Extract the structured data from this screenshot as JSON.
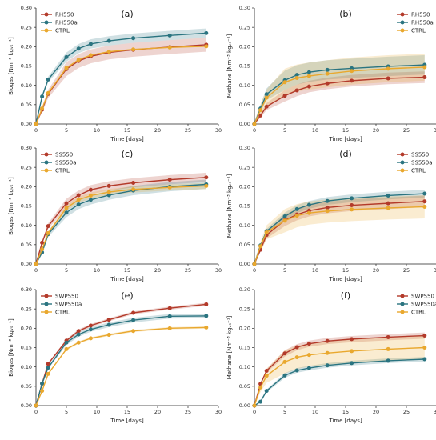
{
  "colors": {
    "RH550": "#b33a2a",
    "SS550": "#b33a2a",
    "SWP550": "#b33a2a",
    "RH550a": "#2a7480",
    "SS550a": "#2a7480",
    "SWP550a": "#2a7480",
    "CTRL": "#e9a82e"
  },
  "chart_data": [
    {
      "type": "line",
      "tag": "(a)",
      "xlabel": "Time [days]",
      "ylabel": "Biogas [Nm⁻³ kgᵥₛ⁻¹]",
      "xlim": [
        0,
        30
      ],
      "ylim": [
        0,
        0.3
      ],
      "xticks": [
        "0",
        "5",
        "10",
        "15",
        "20",
        "25",
        "30"
      ],
      "yticks": [
        "0.00",
        "0.05",
        "0.10",
        "0.15",
        "0.20",
        "0.25",
        "0.30"
      ],
      "legend": "top-left",
      "x": [
        0,
        1,
        2,
        5,
        7,
        9,
        12,
        16,
        22,
        28
      ],
      "series": [
        {
          "name": "RH550",
          "color": "#b33a2a",
          "band": 0.018,
          "values": [
            0,
            0.037,
            0.078,
            0.142,
            0.163,
            0.175,
            0.185,
            0.192,
            0.199,
            0.205
          ]
        },
        {
          "name": "RH550a",
          "color": "#2a7480",
          "band": 0.012,
          "values": [
            0,
            0.071,
            0.115,
            0.173,
            0.195,
            0.207,
            0.215,
            0.222,
            0.229,
            0.235
          ]
        },
        {
          "name": "CTRL",
          "color": "#e9a82e",
          "band": 0.0,
          "values": [
            0,
            0.04,
            0.08,
            0.145,
            0.166,
            0.178,
            0.187,
            0.193,
            0.198,
            0.201
          ]
        }
      ]
    },
    {
      "type": "line",
      "tag": "(b)",
      "xlabel": "Time [days]",
      "ylabel": "Methane [Nm⁻³ kgᵥₛ⁻¹]",
      "xlim": [
        0,
        30
      ],
      "ylim": [
        0,
        0.3
      ],
      "xticks": [
        "0",
        "5",
        "10",
        "15",
        "20",
        "25",
        "30"
      ],
      "yticks": [
        "0.00",
        "0.05",
        "0.10",
        "0.15",
        "0.20",
        "0.25",
        "0.30"
      ],
      "legend": "top-right",
      "x": [
        0,
        1,
        2,
        5,
        7,
        9,
        12,
        16,
        22,
        28
      ],
      "series": [
        {
          "name": "RH550",
          "color": "#b33a2a",
          "band": 0.015,
          "values": [
            0,
            0.022,
            0.045,
            0.073,
            0.087,
            0.097,
            0.105,
            0.112,
            0.118,
            0.121
          ]
        },
        {
          "name": "RH550a",
          "color": "#2a7480",
          "band": 0.025,
          "values": [
            0,
            0.04,
            0.077,
            0.113,
            0.127,
            0.134,
            0.14,
            0.144,
            0.149,
            0.153
          ]
        },
        {
          "name": "CTRL",
          "color": "#e9a82e",
          "band": 0.035,
          "values": [
            0,
            0.036,
            0.068,
            0.108,
            0.119,
            0.124,
            0.13,
            0.137,
            0.143,
            0.147
          ]
        }
      ]
    },
    {
      "type": "line",
      "tag": "(c)",
      "xlabel": "Time [days]",
      "ylabel": "Biogas [Nm⁻³ kgᵥₛ⁻¹]",
      "xlim": [
        0,
        30
      ],
      "ylim": [
        0,
        0.3
      ],
      "xticks": [
        "0",
        "5",
        "10",
        "15",
        "20",
        "25",
        "30"
      ],
      "yticks": [
        "0.00",
        "0.05",
        "0.10",
        "0.15",
        "0.20",
        "0.25",
        "0.30"
      ],
      "legend": "top-left",
      "x": [
        0,
        1,
        2,
        5,
        7,
        9,
        12,
        16,
        22,
        28
      ],
      "series": [
        {
          "name": "SS550",
          "color": "#b33a2a",
          "band": 0.012,
          "values": [
            0,
            0.055,
            0.098,
            0.157,
            0.178,
            0.192,
            0.202,
            0.21,
            0.218,
            0.224
          ]
        },
        {
          "name": "SS550a",
          "color": "#2a7480",
          "band": 0.012,
          "values": [
            0,
            0.03,
            0.077,
            0.133,
            0.154,
            0.166,
            0.178,
            0.19,
            0.2,
            0.206
          ]
        },
        {
          "name": "CTRL",
          "color": "#e9a82e",
          "band": 0.008,
          "values": [
            0,
            0.038,
            0.08,
            0.145,
            0.166,
            0.177,
            0.186,
            0.193,
            0.198,
            0.202
          ]
        }
      ]
    },
    {
      "type": "line",
      "tag": "(d)",
      "xlabel": "Time [days]",
      "ylabel": "Methane [Nm⁻³ kgᵥₛ⁻¹]",
      "xlim": [
        0,
        30
      ],
      "ylim": [
        0,
        0.3
      ],
      "xticks": [
        "0",
        "5",
        "10",
        "15",
        "20",
        "25",
        "30"
      ],
      "yticks": [
        "0.00",
        "0.05",
        "0.10",
        "0.15",
        "0.20",
        "0.25",
        "0.30"
      ],
      "legend": "top-right",
      "x": [
        0,
        1,
        2,
        5,
        7,
        9,
        12,
        16,
        22,
        28
      ],
      "series": [
        {
          "name": "SS550",
          "color": "#b33a2a",
          "band": 0.015,
          "values": [
            0,
            0.037,
            0.075,
            0.113,
            0.128,
            0.138,
            0.146,
            0.152,
            0.157,
            0.162
          ]
        },
        {
          "name": "SS550a",
          "color": "#2a7480",
          "band": 0.01,
          "values": [
            0,
            0.048,
            0.085,
            0.123,
            0.142,
            0.153,
            0.163,
            0.17,
            0.177,
            0.182
          ]
        },
        {
          "name": "CTRL",
          "color": "#e9a82e",
          "band": 0.03,
          "values": [
            0,
            0.046,
            0.082,
            0.112,
            0.125,
            0.132,
            0.137,
            0.141,
            0.145,
            0.148
          ]
        }
      ]
    },
    {
      "type": "line",
      "tag": "(e)",
      "xlabel": "Time [days]",
      "ylabel": "Biogas [Nm⁻³ kgᵥₛ⁻¹]",
      "xlim": [
        0,
        30
      ],
      "ylim": [
        0,
        0.3
      ],
      "xticks": [
        "0",
        "5",
        "10",
        "15",
        "20",
        "25",
        "30"
      ],
      "yticks": [
        "0.00",
        "0.05",
        "0.10",
        "0.15",
        "0.20",
        "0.25",
        "0.30"
      ],
      "legend": "top-left",
      "x": [
        0,
        1,
        2,
        5,
        7,
        9,
        12,
        16,
        22,
        28
      ],
      "series": [
        {
          "name": "SWP550",
          "color": "#b33a2a",
          "band": 0.004,
          "values": [
            0,
            0.057,
            0.108,
            0.168,
            0.193,
            0.207,
            0.222,
            0.24,
            0.252,
            0.262
          ]
        },
        {
          "name": "SWP550a",
          "color": "#2a7480",
          "band": 0.006,
          "values": [
            0,
            0.057,
            0.098,
            0.163,
            0.184,
            0.197,
            0.209,
            0.221,
            0.231,
            0.232
          ]
        },
        {
          "name": "CTRL",
          "color": "#e9a82e",
          "band": 0.003,
          "values": [
            0,
            0.038,
            0.082,
            0.146,
            0.163,
            0.174,
            0.183,
            0.193,
            0.2,
            0.202
          ]
        }
      ]
    },
    {
      "type": "line",
      "tag": "(f)",
      "xlabel": "Time [days]",
      "ylabel": "Methane [Nm⁻³ kgᵥₛ⁻¹]",
      "xlim": [
        0,
        30
      ],
      "ylim": [
        0,
        0.3
      ],
      "xticks": [
        "0",
        "5",
        "10",
        "15",
        "20",
        "25",
        "30"
      ],
      "yticks": [
        "0.00",
        "0.05",
        "0.10",
        "0.15",
        "0.20",
        "0.25",
        "0.30"
      ],
      "legend": "top-right",
      "x": [
        0,
        1,
        2,
        5,
        7,
        9,
        12,
        16,
        22,
        28
      ],
      "series": [
        {
          "name": "SWP550",
          "color": "#b33a2a",
          "band": 0.008,
          "values": [
            0,
            0.056,
            0.09,
            0.135,
            0.151,
            0.16,
            0.167,
            0.172,
            0.177,
            0.181
          ]
        },
        {
          "name": "SWP550a",
          "color": "#2a7480",
          "band": 0.006,
          "values": [
            0,
            0.01,
            0.038,
            0.078,
            0.091,
            0.097,
            0.104,
            0.11,
            0.116,
            0.12
          ]
        },
        {
          "name": "CTRL",
          "color": "#e9a82e",
          "band": 0.03,
          "values": [
            0,
            0.047,
            0.077,
            0.113,
            0.125,
            0.131,
            0.136,
            0.141,
            0.146,
            0.15
          ]
        }
      ]
    }
  ]
}
